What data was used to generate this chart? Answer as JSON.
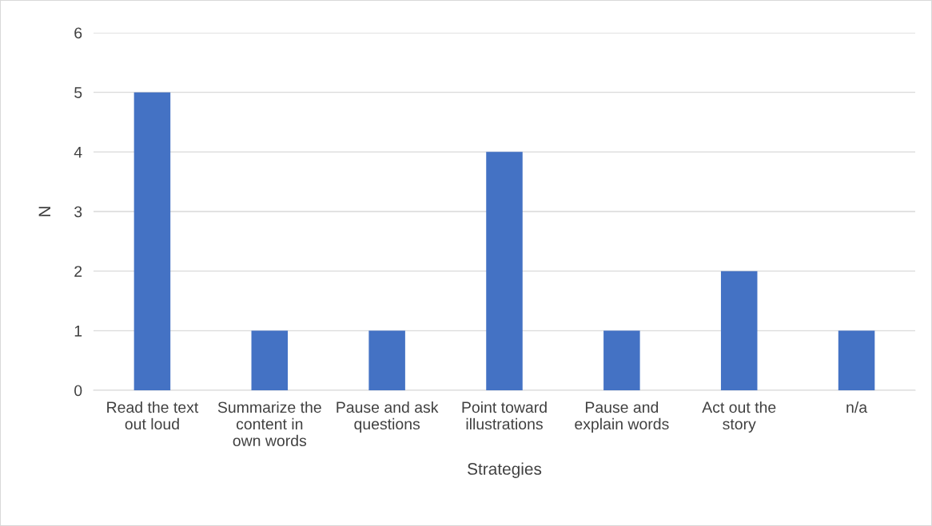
{
  "chart_data": {
    "type": "bar",
    "categories": [
      "Read the text\nout loud",
      "Summarize the\ncontent in\nown words",
      "Pause and ask\nquestions",
      "Point toward\nillustrations",
      "Pause and\nexplain words",
      "Act out the\nstory",
      "n/a"
    ],
    "values": [
      5,
      1,
      1,
      4,
      1,
      2,
      1
    ],
    "color": "#4472c4",
    "xlabel": "Strategies",
    "ylabel": "N",
    "ylim": [
      0,
      6
    ],
    "yticks": [
      0,
      1,
      2,
      3,
      4,
      5,
      6
    ],
    "grid": "y",
    "legend": false
  }
}
